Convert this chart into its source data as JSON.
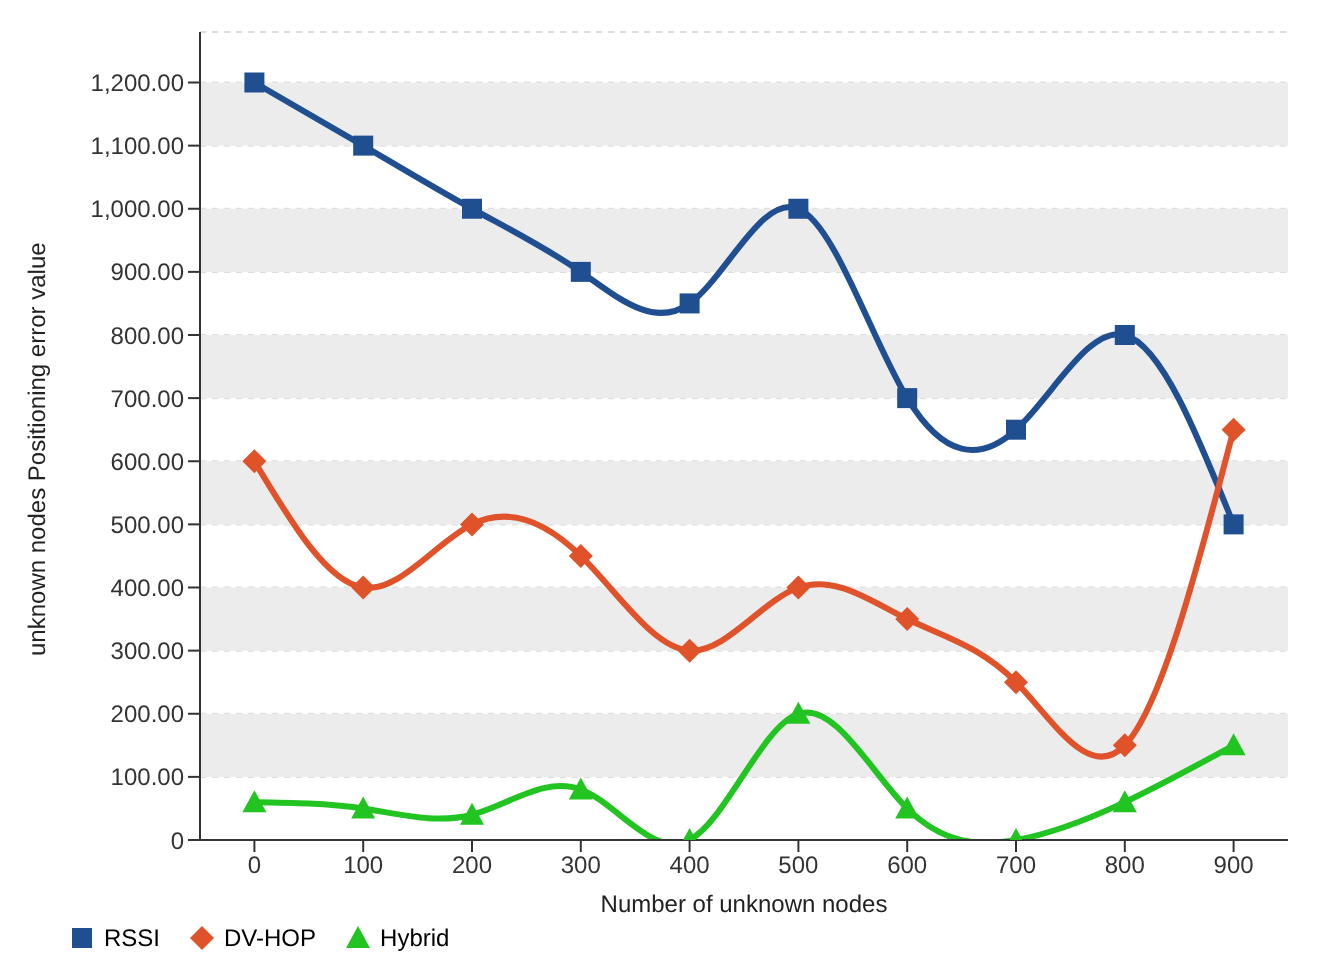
{
  "chart_data": {
    "type": "line",
    "xlabel": "Number of unknown nodes",
    "ylabel": "unknown nodes Positioning error value",
    "x": [
      0,
      100,
      200,
      300,
      400,
      500,
      600,
      700,
      800,
      900
    ],
    "xlim": [
      -50,
      950
    ],
    "xticks": [
      0,
      100,
      200,
      300,
      400,
      500,
      600,
      700,
      800,
      900
    ],
    "ylim": [
      0,
      1280
    ],
    "yticks": [
      {
        "value": 0,
        "label": "0"
      },
      {
        "value": 100,
        "label": "100.00"
      },
      {
        "value": 200,
        "label": "200.00"
      },
      {
        "value": 300,
        "label": "300.00"
      },
      {
        "value": 400,
        "label": "400.00"
      },
      {
        "value": 500,
        "label": "500.00"
      },
      {
        "value": 600,
        "label": "600.00"
      },
      {
        "value": 700,
        "label": "700.00"
      },
      {
        "value": 800,
        "label": "800.00"
      },
      {
        "value": 900,
        "label": "900.00"
      },
      {
        "value": 1000,
        "label": "1,000.00"
      },
      {
        "value": 1100,
        "label": "1,100.00"
      },
      {
        "value": 1200,
        "label": "1,200.00"
      }
    ],
    "grid": "y",
    "legend": "bottom left",
    "series": [
      {
        "name": "RSSI",
        "color": "#1f4e91",
        "marker": "square",
        "values": [
          1200,
          1100,
          1000,
          900,
          850,
          1000,
          700,
          650,
          800,
          500
        ]
      },
      {
        "name": "DV-HOP",
        "color": "#e0522a",
        "marker": "diamond",
        "values": [
          600,
          400,
          500,
          450,
          300,
          400,
          350,
          250,
          150,
          650
        ]
      },
      {
        "name": "Hybrid",
        "color": "#22c422",
        "marker": "triangle",
        "values": [
          60,
          50,
          40,
          80,
          0,
          200,
          50,
          0,
          60,
          150
        ]
      }
    ]
  }
}
